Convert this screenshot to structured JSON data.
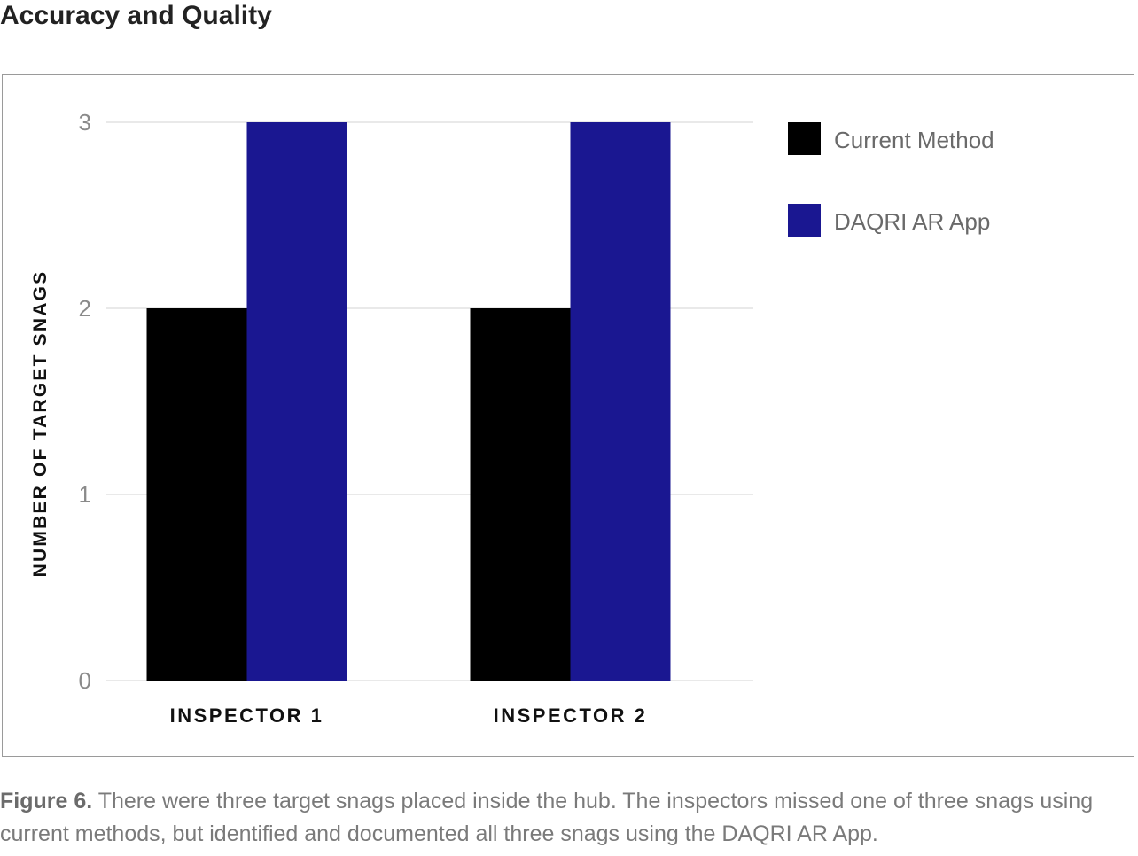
{
  "heading": "Accuracy and Quality",
  "caption": {
    "lead": "Figure 6.",
    "text": "There were three target snags placed inside the hub. The inspectors missed one of three snags using current methods, but identified and documented all three snags using the DAQRI AR App."
  },
  "chart_data": {
    "type": "bar",
    "title": "",
    "xlabel": "",
    "ylabel": "NUMBER OF TARGET SNAGS",
    "categories": [
      "INSPECTOR 1",
      "INSPECTOR 2"
    ],
    "series": [
      {
        "name": "Current Method",
        "values": [
          2,
          2
        ],
        "color": "#000000"
      },
      {
        "name": "DAQRI AR App",
        "values": [
          3,
          3
        ],
        "color": "#1a1791"
      }
    ],
    "ylim": [
      0,
      3
    ],
    "yticks": [
      0,
      1,
      2,
      3
    ],
    "grid": true,
    "legend": "right"
  }
}
